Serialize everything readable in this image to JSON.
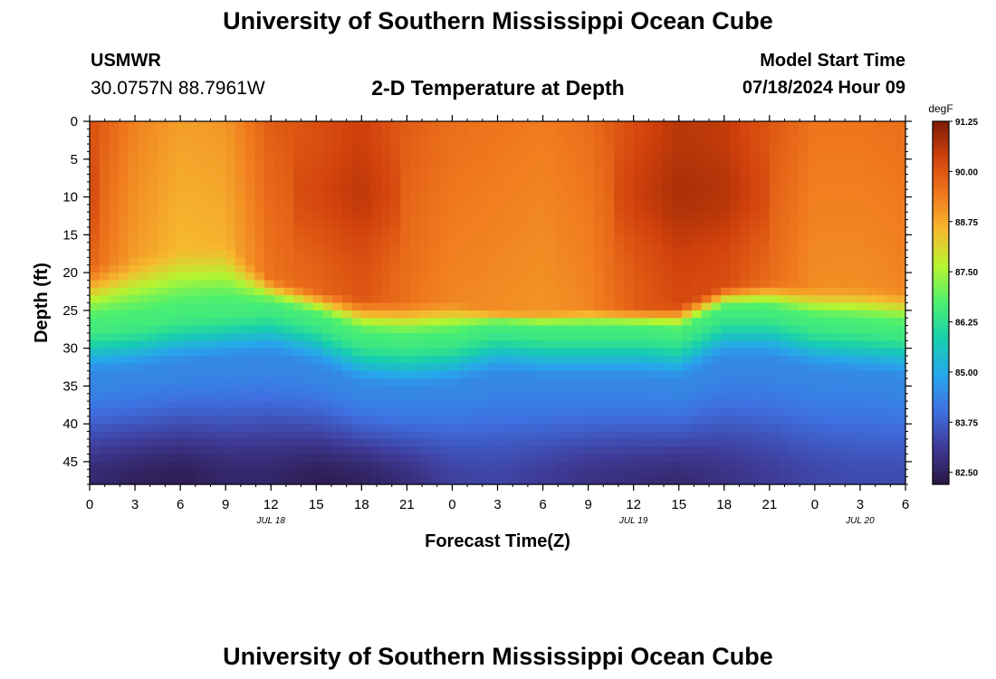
{
  "header": {
    "title": "University of Southern Mississippi Ocean Cube",
    "station": "USMWR",
    "coords": "30.0757N  88.7961W",
    "plot_title": "2-D Temperature at Depth",
    "model_start_label": "Model Start Time",
    "model_start_value": "07/18/2024 Hour 09"
  },
  "footer": {
    "title": "University of Southern Mississippi Ocean Cube"
  },
  "chart_data": {
    "type": "heatmap",
    "title": "2-D Temperature at Depth",
    "xlabel": "Forecast Time(Z)",
    "ylabel": "Depth (ft)",
    "x_ticks": [
      "0",
      "3",
      "6",
      "9",
      "12",
      "15",
      "18",
      "21",
      "0",
      "3",
      "6",
      "9",
      "12",
      "15",
      "18",
      "21",
      "0",
      "3",
      "6"
    ],
    "date_labels": [
      {
        "label": "JUL 18",
        "after_tick": 4
      },
      {
        "label": "JUL 19",
        "after_tick": 12
      },
      {
        "label": "JUL 20",
        "after_tick": 17
      }
    ],
    "y_ticks": [
      0,
      5,
      10,
      15,
      20,
      25,
      30,
      35,
      40,
      45
    ],
    "ylim": [
      0,
      48
    ],
    "x_hours_range": [
      0,
      54
    ],
    "colorbar": {
      "unit": "degF",
      "ticks": [
        "91.25",
        "90.00",
        "88.75",
        "87.50",
        "86.25",
        "85.00",
        "83.75",
        "82.50"
      ],
      "range": [
        82.2,
        91.25
      ],
      "stops": [
        "#2a1642",
        "#3f3a96",
        "#3f6fe0",
        "#27a6ec",
        "#17cfae",
        "#4bf070",
        "#b6f431",
        "#f6b92f",
        "#f0781e",
        "#d1420c",
        "#7c1b04"
      ]
    },
    "times_hours": [
      0,
      3,
      6,
      9,
      12,
      15,
      18,
      21,
      24,
      27,
      30,
      33,
      36,
      39,
      42,
      45,
      48,
      51,
      54
    ],
    "thermocline_top_ft": [
      18.5,
      17,
      16,
      15.5,
      20.5,
      22,
      23,
      23.5,
      23.5,
      25,
      25,
      24.5,
      24.5,
      24,
      21.5,
      21,
      21.5,
      21.5,
      22
    ],
    "thermocline_mid_ft": [
      27,
      26.5,
      25.5,
      25,
      24.5,
      26,
      28.5,
      29,
      28.5,
      27,
      27.5,
      27.5,
      27.5,
      28,
      25,
      25,
      26.5,
      27,
      27.5
    ],
    "surface_temp_degF": [
      90.1,
      89.3,
      88.9,
      89.0,
      89.9,
      90.1,
      90.4,
      89.9,
      89.6,
      89.5,
      89.4,
      89.6,
      90.2,
      90.6,
      90.5,
      90.0,
      89.5,
      89.5,
      89.6
    ],
    "bottom_temp_degF": [
      82.7,
      82.5,
      82.4,
      82.6,
      82.6,
      82.4,
      82.5,
      82.8,
      83.2,
      83.3,
      83.1,
      82.9,
      82.8,
      82.7,
      82.9,
      83.1,
      83.3,
      83.4,
      83.4
    ],
    "grid": false
  }
}
